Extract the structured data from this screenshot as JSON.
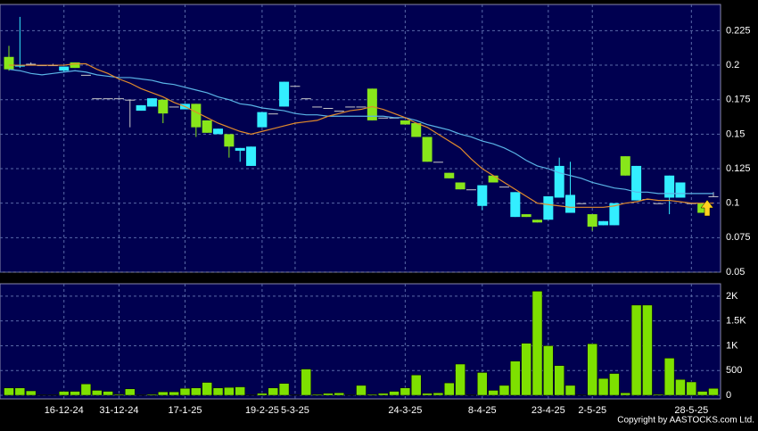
{
  "chart_data": [
    {
      "type": "candlestick",
      "up_color": "#33eeff",
      "down_color": "#88e61a",
      "flat_color": "#c8c8c8",
      "open": [
        0.206,
        0.199,
        0.201,
        0.2,
        0.2,
        0.196,
        0.202,
        0.193,
        0.176,
        0.176,
        0.176,
        0.175,
        0.167,
        0.17,
        0.175,
        0.17,
        0.168,
        0.172,
        0.16,
        0.15,
        0.15,
        0.138,
        0.127,
        0.155,
        0.165,
        0.17,
        0.185,
        0.176,
        0.17,
        0.169,
        0.167,
        0.17,
        0.17,
        0.183,
        0.162,
        0.162,
        0.16,
        0.158,
        0.148,
        0.13,
        0.122,
        0.115,
        0.11,
        0.098,
        0.12,
        0.112,
        0.09,
        0.092,
        0.088,
        0.088,
        0.104,
        0.093,
        0.1,
        0.092,
        0.084,
        0.084,
        0.134,
        0.102,
        0.103,
        0.1,
        0.104,
        0.104,
        0.1,
        0.1,
        0.105
      ],
      "high": [
        0.214,
        0.235,
        0.202,
        0.2,
        0.201,
        0.199,
        0.202,
        0.193,
        0.176,
        0.176,
        0.176,
        0.175,
        0.171,
        0.176,
        0.175,
        0.17,
        0.172,
        0.172,
        0.16,
        0.154,
        0.15,
        0.14,
        0.141,
        0.166,
        0.165,
        0.188,
        0.185,
        0.176,
        0.17,
        0.169,
        0.167,
        0.17,
        0.17,
        0.183,
        0.162,
        0.162,
        0.16,
        0.158,
        0.148,
        0.13,
        0.122,
        0.115,
        0.11,
        0.113,
        0.12,
        0.112,
        0.108,
        0.092,
        0.088,
        0.105,
        0.133,
        0.13,
        0.1,
        0.092,
        0.087,
        0.1,
        0.134,
        0.127,
        0.103,
        0.1,
        0.12,
        0.115,
        0.1,
        0.1,
        0.108
      ],
      "low": [
        0.196,
        0.198,
        0.2,
        0.2,
        0.2,
        0.195,
        0.198,
        0.193,
        0.176,
        0.176,
        0.176,
        0.155,
        0.167,
        0.17,
        0.158,
        0.17,
        0.168,
        0.148,
        0.151,
        0.15,
        0.133,
        0.13,
        0.127,
        0.155,
        0.165,
        0.17,
        0.185,
        0.176,
        0.17,
        0.169,
        0.167,
        0.17,
        0.17,
        0.16,
        0.162,
        0.162,
        0.157,
        0.148,
        0.13,
        0.13,
        0.118,
        0.11,
        0.11,
        0.095,
        0.115,
        0.112,
        0.09,
        0.09,
        0.086,
        0.088,
        0.104,
        0.093,
        0.1,
        0.08,
        0.084,
        0.084,
        0.12,
        0.102,
        0.103,
        0.1,
        0.092,
        0.104,
        0.1,
        0.093,
        0.105
      ],
      "close": [
        0.197,
        0.2,
        0.201,
        0.2,
        0.2,
        0.199,
        0.198,
        0.193,
        0.176,
        0.176,
        0.176,
        0.175,
        0.171,
        0.176,
        0.165,
        0.17,
        0.172,
        0.155,
        0.151,
        0.154,
        0.141,
        0.14,
        0.141,
        0.166,
        0.165,
        0.188,
        0.185,
        0.176,
        0.17,
        0.169,
        0.167,
        0.17,
        0.17,
        0.16,
        0.162,
        0.162,
        0.157,
        0.148,
        0.13,
        0.13,
        0.118,
        0.11,
        0.11,
        0.113,
        0.115,
        0.112,
        0.108,
        0.09,
        0.086,
        0.105,
        0.127,
        0.106,
        0.1,
        0.083,
        0.087,
        0.1,
        0.12,
        0.127,
        0.103,
        0.1,
        0.12,
        0.115,
        0.1,
        0.093,
        0.105
      ],
      "series": [
        {
          "color": "#5ab4e6",
          "values": [
            0.197,
            0.196,
            0.194,
            0.193,
            0.194,
            0.195,
            0.196,
            0.195,
            0.193,
            0.192,
            0.191,
            0.191,
            0.19,
            0.189,
            0.187,
            0.186,
            0.184,
            0.182,
            0.18,
            0.177,
            0.175,
            0.172,
            0.171,
            0.169,
            0.168,
            0.167,
            0.165,
            0.164,
            0.164,
            0.163,
            0.163,
            0.163,
            0.163,
            0.163,
            0.163,
            0.162,
            0.162,
            0.16,
            0.157,
            0.155,
            0.153,
            0.15,
            0.148,
            0.145,
            0.143,
            0.14,
            0.136,
            0.131,
            0.127,
            0.125,
            0.122,
            0.12,
            0.118,
            0.115,
            0.113,
            0.111,
            0.11,
            0.108,
            0.108,
            0.107,
            0.107,
            0.107,
            0.107,
            0.107,
            0.107
          ]
        },
        {
          "color": "#e08a2c",
          "values": [
            0.2,
            0.2,
            0.2,
            0.2,
            0.2,
            0.2,
            0.201,
            0.201,
            0.197,
            0.194,
            0.19,
            0.187,
            0.183,
            0.18,
            0.177,
            0.173,
            0.17,
            0.166,
            0.162,
            0.158,
            0.155,
            0.152,
            0.15,
            0.152,
            0.154,
            0.156,
            0.158,
            0.159,
            0.16,
            0.163,
            0.165,
            0.167,
            0.168,
            0.17,
            0.168,
            0.165,
            0.162,
            0.158,
            0.155,
            0.15,
            0.145,
            0.14,
            0.132,
            0.125,
            0.12,
            0.115,
            0.11,
            0.105,
            0.1,
            0.099,
            0.098,
            0.097,
            0.097,
            0.097,
            0.097,
            0.098,
            0.1,
            0.101,
            0.103,
            0.102,
            0.102,
            0.101,
            0.1,
            0.1,
            0.1
          ]
        }
      ],
      "ylim": [
        0.05,
        0.244
      ],
      "yticks": [
        0.05,
        0.075,
        0.1,
        0.125,
        0.15,
        0.175,
        0.2,
        0.225
      ],
      "grid": true
    },
    {
      "type": "bar",
      "categories": [
        null,
        null,
        null,
        null,
        null,
        "16-12-24",
        null,
        null,
        null,
        null,
        "31-12-24",
        null,
        null,
        null,
        null,
        null,
        "17-1-25",
        null,
        null,
        null,
        null,
        null,
        null,
        "19-2-25",
        null,
        null,
        "5-3-25",
        null,
        null,
        null,
        null,
        null,
        null,
        null,
        null,
        null,
        "24-3-25",
        null,
        null,
        null,
        null,
        null,
        null,
        "8-4-25",
        null,
        null,
        null,
        null,
        null,
        "23-4-25",
        null,
        null,
        null,
        "2-5-25",
        null,
        null,
        null,
        null,
        null,
        null,
        null,
        null,
        "28-5-25",
        null,
        null
      ],
      "values": [
        150,
        150,
        90,
        10,
        10,
        80,
        80,
        230,
        100,
        80,
        20,
        130,
        10,
        20,
        70,
        70,
        140,
        150,
        260,
        150,
        160,
        170,
        10,
        40,
        150,
        240,
        10,
        530,
        20,
        40,
        50,
        10,
        200,
        20,
        40,
        80,
        150,
        410,
        40,
        50,
        250,
        630,
        10,
        460,
        100,
        200,
        690,
        1050,
        2100,
        1000,
        600,
        200,
        10,
        1040,
        340,
        440,
        50,
        1820,
        1820,
        20,
        750,
        320,
        270,
        80,
        140
      ],
      "color": "#7ee000",
      "ylim": [
        0,
        2250
      ],
      "yticks": [
        0,
        500,
        {
          "value": 1000,
          "label": "1K"
        },
        {
          "value": 1500,
          "label": "1.5K"
        },
        {
          "value": 2000,
          "label": "2K"
        }
      ],
      "grid": true,
      "footer": "Copyright by AASTOCKS.com Ltd."
    }
  ]
}
